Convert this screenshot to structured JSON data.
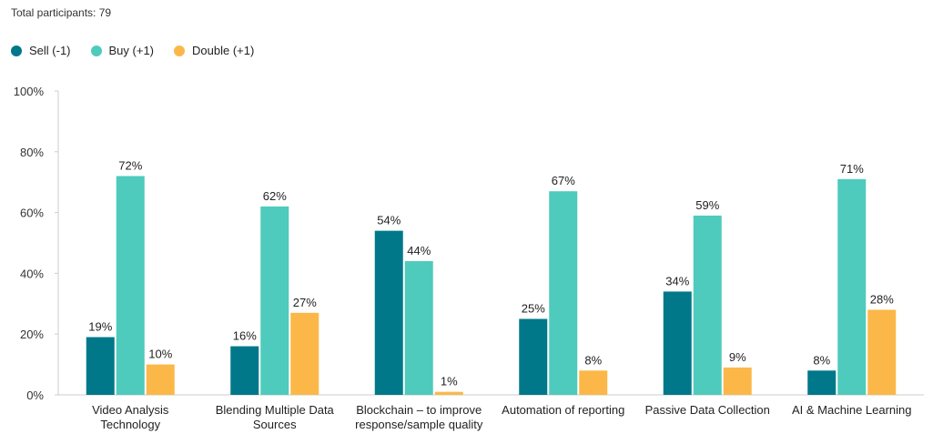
{
  "header": {
    "participants": "Total participants: 79"
  },
  "chart_data": {
    "type": "bar",
    "categories": [
      [
        "Video Analysis",
        "Technology"
      ],
      [
        "Blending Multiple Data",
        "Sources"
      ],
      [
        "Blockchain – to improve",
        "response/sample quality"
      ],
      [
        "Automation of reporting"
      ],
      [
        "Passive Data Collection"
      ],
      [
        "AI & Machine Learning"
      ]
    ],
    "series": [
      {
        "name": "Sell (-1)",
        "color": "#00788a",
        "values": [
          19,
          16,
          54,
          25,
          34,
          8
        ]
      },
      {
        "name": "Buy (+1)",
        "color": "#4ecbbc",
        "values": [
          72,
          62,
          44,
          67,
          59,
          71
        ]
      },
      {
        "name": "Double (+1)",
        "color": "#fbb848",
        "values": [
          10,
          27,
          1,
          8,
          9,
          28
        ]
      }
    ],
    "ylim": [
      0,
      100
    ],
    "yticks": [
      "0%",
      "20%",
      "40%",
      "60%",
      "80%",
      "100%"
    ],
    "value_suffix": "%",
    "legend_position": "top-left",
    "grid": false
  }
}
